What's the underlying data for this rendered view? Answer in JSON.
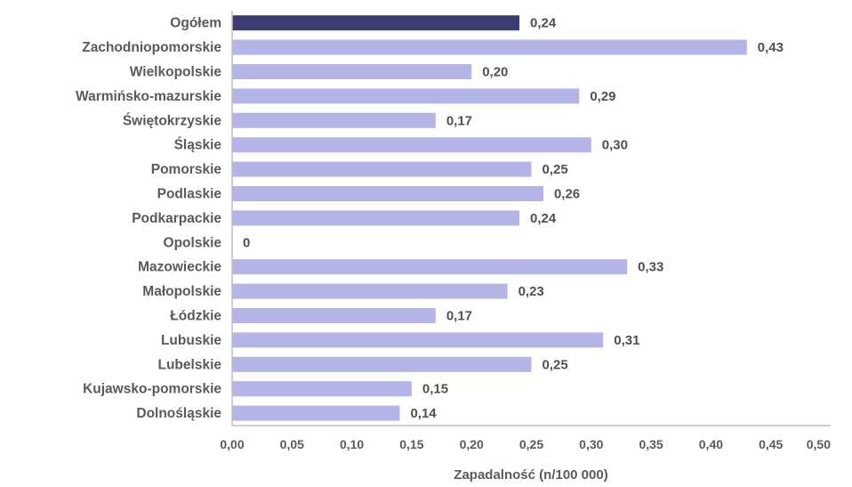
{
  "chart_data": {
    "type": "bar",
    "orientation": "horizontal",
    "categories": [
      "Ogółem",
      "Zachodniopomorskie",
      "Wielkopolskie",
      "Warmińsko-mazurskie",
      "Świętokrzyskie",
      "Śląskie",
      "Pomorskie",
      "Podlaskie",
      "Podkarpackie",
      "Opolskie",
      "Mazowieckie",
      "Małopolskie",
      "Łódzkie",
      "Lubuskie",
      "Lubelskie",
      "Kujawsko-pomorskie",
      "Dolnośląskie"
    ],
    "values": [
      0.24,
      0.43,
      0.2,
      0.29,
      0.17,
      0.3,
      0.25,
      0.26,
      0.24,
      0,
      0.33,
      0.23,
      0.17,
      0.31,
      0.25,
      0.15,
      0.14
    ],
    "value_labels": [
      "0,24",
      "0,43",
      "0,20",
      "0,29",
      "0,17",
      "0,30",
      "0,25",
      "0,26",
      "0,24",
      "0",
      "0,33",
      "0,23",
      "0,17",
      "0,31",
      "0,25",
      "0,15",
      "0,14"
    ],
    "xticks": [
      "0,00",
      "0,05",
      "0,10",
      "0,15",
      "0,20",
      "0,25",
      "0,30",
      "0,35",
      "0,40",
      "0,45",
      "0,50"
    ],
    "xlim": [
      0,
      0.5
    ],
    "xlabel": "Zapadalność (n/100 000)",
    "highlight_color": "#3c3c73",
    "bar_color": "#b4b4e6",
    "grid": false
  }
}
